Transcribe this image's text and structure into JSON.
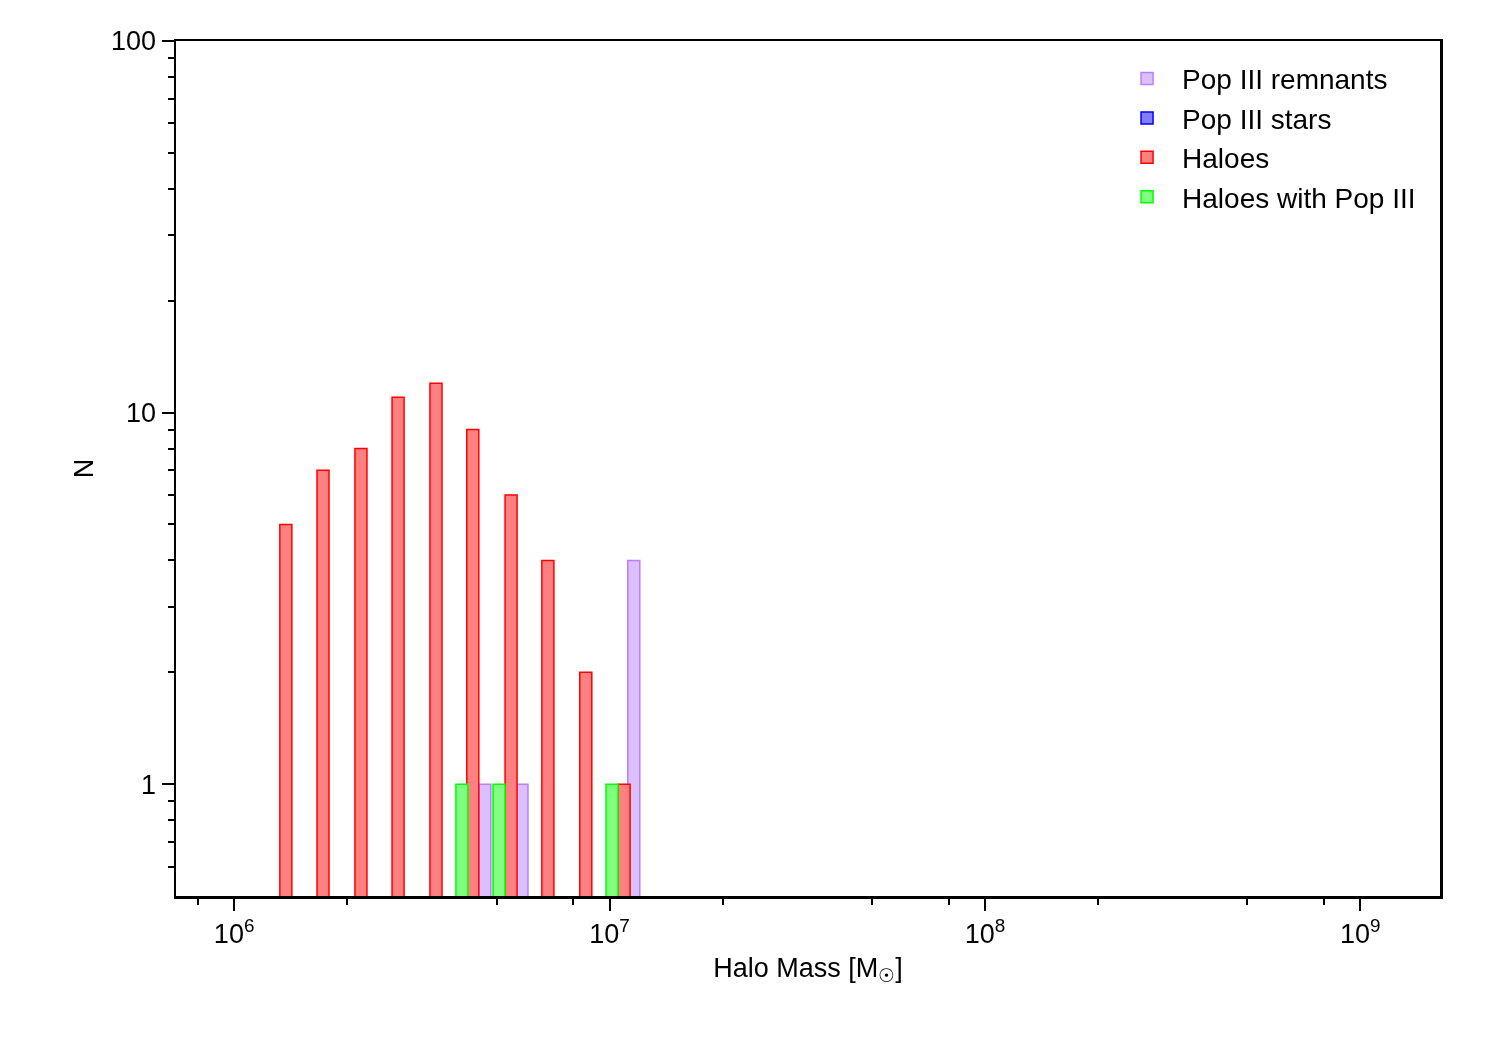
{
  "chart_data": {
    "type": "bar",
    "xlabel": "Halo Mass [M$_{☉}$]",
    "ylabel": "N",
    "log": "xy",
    "xlim": [
      700000,
      1630000000
    ],
    "ylim": [
      0.5,
      100
    ],
    "xticks": [
      {
        "value": 800000,
        "label": null
      },
      {
        "value": 1000000,
        "label": "10$^{6}$"
      },
      {
        "value": 2000000,
        "label": null
      },
      {
        "value": 5000000,
        "label": null
      },
      {
        "value": 8000000,
        "label": null
      },
      {
        "value": 10000000,
        "label": "10$^{7}$"
      },
      {
        "value": 20000000,
        "label": null
      },
      {
        "value": 50000000,
        "label": null
      },
      {
        "value": 80000000,
        "label": null
      },
      {
        "value": 100000000,
        "label": "10$^{8}$"
      },
      {
        "value": 200000000,
        "label": null
      },
      {
        "value": 500000000,
        "label": null
      },
      {
        "value": 800000000,
        "label": null
      },
      {
        "value": 1000000000,
        "label": "10$^{9}$"
      }
    ],
    "yticks": [
      {
        "value": 0.6,
        "label": null
      },
      {
        "value": 0.7,
        "label": null
      },
      {
        "value": 0.8,
        "label": null
      },
      {
        "value": 0.9,
        "label": null
      },
      1,
      {
        "value": 2,
        "label": null
      },
      {
        "value": 3,
        "label": null
      },
      {
        "value": 4,
        "label": null
      },
      {
        "value": 5,
        "label": null
      },
      {
        "value": 6,
        "label": null
      },
      {
        "value": 7,
        "label": null
      },
      {
        "value": 8,
        "label": null
      },
      {
        "value": 9,
        "label": null
      },
      10,
      {
        "value": 20,
        "label": null
      },
      {
        "value": 30,
        "label": null
      },
      {
        "value": 40,
        "label": null
      },
      {
        "value": 50,
        "label": null
      },
      {
        "value": 60,
        "label": null
      },
      {
        "value": 70,
        "label": null
      },
      {
        "value": 80,
        "label": null
      },
      {
        "value": 90,
        "label": null
      },
      100
    ],
    "grid": false,
    "legend": "top right",
    "series": [
      {
        "name": "Pop III remnants",
        "color": "#dcbfff",
        "x": [
          4656000,
          5848000,
          11610000
        ],
        "values": [
          1,
          1,
          4
        ]
      },
      {
        "name": "Pop III stars",
        "color": "#8080ff"
      },
      {
        "name": "Haloes",
        "color": "#ff8080",
        "x": [
          1374000,
          1726000,
          2178000,
          2735000,
          3451000,
          4325000,
          5470000,
          6855000,
          8650000,
          10940000
        ],
        "values": [
          5,
          7,
          8,
          11,
          12,
          9,
          6,
          4,
          2,
          1
        ]
      },
      {
        "name": "Haloes with Pop III",
        "color": "#80ff80",
        "x": [
          4046000,
          5080000,
          10160000
        ],
        "values": [
          1,
          1,
          1
        ]
      }
    ]
  }
}
